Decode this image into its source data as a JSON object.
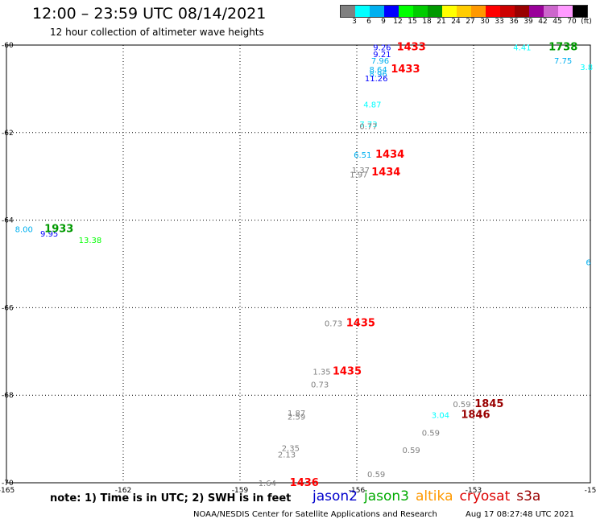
{
  "title": "12:00 – 23:59 UTC 08/14/2021",
  "subtitle": "12 hour collection of altimeter wave heights",
  "colorbar": {
    "colors": [
      "#808080",
      "#00ffff",
      "#00b0f0",
      "#0000ff",
      "#00ff00",
      "#00cc00",
      "#009900",
      "#ffff00",
      "#ffcc00",
      "#ff9900",
      "#ff0000",
      "#cc0000",
      "#990000",
      "#990099",
      "#cc66cc",
      "#ff99ff",
      "#000000"
    ],
    "labels": [
      "3",
      "6",
      "9",
      "12",
      "15",
      "18",
      "21",
      "24",
      "27",
      "30",
      "33",
      "36",
      "39",
      "42",
      "45",
      "70",
      "(ft)"
    ]
  },
  "axes": {
    "x_ticks": [
      "-165",
      "-162",
      "-159",
      "-156",
      "-153",
      "-15"
    ],
    "y_ticks": [
      "-60",
      "-62",
      "-64",
      "-66",
      "-68",
      "-70"
    ],
    "x_range": [
      -165,
      -150
    ],
    "y_range": [
      -70,
      -60
    ]
  },
  "note": "note: 1) Time is in UTC; 2) SWH is in feet",
  "legend": [
    {
      "label": "jason2",
      "color": "#0000cc"
    },
    {
      "label": "jason3",
      "color": "#00aa00"
    },
    {
      "label": "altika",
      "color": "#ff9900"
    },
    {
      "label": "cryosat",
      "color": "#dd0000"
    },
    {
      "label": "s3a",
      "color": "#990000"
    }
  ],
  "footer_left": "NOAA/NESDIS Center for Satellite Applications and Research",
  "footer_right": "Aug 17 08:27:48 UTC 2021",
  "labels": [
    {
      "text": "9.26",
      "lon": -155.35,
      "lat": -60.05,
      "color": "#0000ff",
      "kind": "value"
    },
    {
      "text": "9.21",
      "lon": -155.35,
      "lat": -60.2,
      "color": "#0000ff",
      "kind": "value"
    },
    {
      "text": "7.96",
      "lon": -155.4,
      "lat": -60.35,
      "color": "#00b0f0",
      "kind": "value"
    },
    {
      "text": "8.64",
      "lon": -155.45,
      "lat": -60.55,
      "color": "#00b0f0",
      "kind": "value"
    },
    {
      "text": "8.96",
      "lon": -155.45,
      "lat": -60.65,
      "color": "#00b0f0",
      "kind": "value"
    },
    {
      "text": "11.26",
      "lon": -155.5,
      "lat": -60.75,
      "color": "#0000ff",
      "kind": "value"
    },
    {
      "text": "1433",
      "lon": -154.6,
      "lat": -60.05,
      "color": "#ff0000",
      "kind": "time"
    },
    {
      "text": "1433",
      "lon": -154.75,
      "lat": -60.55,
      "color": "#ff0000",
      "kind": "time"
    },
    {
      "text": "4.87",
      "lon": -155.6,
      "lat": -61.35,
      "color": "#00ffff",
      "kind": "value"
    },
    {
      "text": "7.73",
      "lon": -155.7,
      "lat": -61.8,
      "color": "#00ffff",
      "kind": "value"
    },
    {
      "text": "0.77",
      "lon": -155.7,
      "lat": -61.85,
      "color": "#808080",
      "kind": "value"
    },
    {
      "text": "6.51",
      "lon": -155.85,
      "lat": -62.5,
      "color": "#00b0f0",
      "kind": "value"
    },
    {
      "text": "1434",
      "lon": -155.15,
      "lat": -62.5,
      "color": "#ff0000",
      "kind": "time"
    },
    {
      "text": "1.37",
      "lon": -155.9,
      "lat": -62.85,
      "color": "#808080",
      "kind": "value"
    },
    {
      "text": "1.97",
      "lon": -155.95,
      "lat": -62.95,
      "color": "#808080",
      "kind": "value"
    },
    {
      "text": "1434",
      "lon": -155.25,
      "lat": -62.9,
      "color": "#ff0000",
      "kind": "time"
    },
    {
      "text": "8.00",
      "lon": -164.55,
      "lat": -64.2,
      "color": "#00b0f0",
      "kind": "value"
    },
    {
      "text": "9.95",
      "lon": -163.9,
      "lat": -64.3,
      "color": "#0000ff",
      "kind": "value"
    },
    {
      "text": "1933",
      "lon": -163.65,
      "lat": -64.2,
      "color": "#009900",
      "kind": "time"
    },
    {
      "text": "13.38",
      "lon": -162.85,
      "lat": -64.45,
      "color": "#00ff00",
      "kind": "value"
    },
    {
      "text": "4.41",
      "lon": -151.75,
      "lat": -60.05,
      "color": "#00ffff",
      "kind": "value"
    },
    {
      "text": "1738",
      "lon": -150.7,
      "lat": -60.05,
      "color": "#009900",
      "kind": "time"
    },
    {
      "text": "7.75",
      "lon": -150.7,
      "lat": -60.35,
      "color": "#00b0f0",
      "kind": "value"
    },
    {
      "text": "3.8",
      "lon": -150.1,
      "lat": -60.5,
      "color": "#00ffff",
      "kind": "value"
    },
    {
      "text": "6",
      "lon": -150.05,
      "lat": -64.95,
      "color": "#00b0f0",
      "kind": "value"
    },
    {
      "text": "0.73",
      "lon": -156.6,
      "lat": -66.35,
      "color": "#808080",
      "kind": "value"
    },
    {
      "text": "1435",
      "lon": -155.9,
      "lat": -66.35,
      "color": "#ff0000",
      "kind": "time"
    },
    {
      "text": "1.35",
      "lon": -156.9,
      "lat": -67.45,
      "color": "#808080",
      "kind": "value"
    },
    {
      "text": "1435",
      "lon": -156.25,
      "lat": -67.45,
      "color": "#ff0000",
      "kind": "time"
    },
    {
      "text": "0.73",
      "lon": -156.95,
      "lat": -67.75,
      "color": "#808080",
      "kind": "value"
    },
    {
      "text": "0.59",
      "lon": -153.3,
      "lat": -68.2,
      "color": "#808080",
      "kind": "value"
    },
    {
      "text": "1845",
      "lon": -152.6,
      "lat": -68.2,
      "color": "#990000",
      "kind": "time"
    },
    {
      "text": "3.04",
      "lon": -153.85,
      "lat": -68.45,
      "color": "#00ffff",
      "kind": "value"
    },
    {
      "text": "1846",
      "lon": -152.95,
      "lat": -68.45,
      "color": "#990000",
      "kind": "time"
    },
    {
      "text": "1.87",
      "lon": -157.55,
      "lat": -68.4,
      "color": "#808080",
      "kind": "value"
    },
    {
      "text": "2.59",
      "lon": -157.55,
      "lat": -68.48,
      "color": "#808080",
      "kind": "value"
    },
    {
      "text": "0.59",
      "lon": -154.1,
      "lat": -68.85,
      "color": "#808080",
      "kind": "value"
    },
    {
      "text": "0.59",
      "lon": -154.6,
      "lat": -69.25,
      "color": "#808080",
      "kind": "value"
    },
    {
      "text": "2.35",
      "lon": -157.7,
      "lat": -69.2,
      "color": "#808080",
      "kind": "value"
    },
    {
      "text": "2.13",
      "lon": -157.8,
      "lat": -69.35,
      "color": "#808080",
      "kind": "value"
    },
    {
      "text": "0.59",
      "lon": -155.5,
      "lat": -69.8,
      "color": "#808080",
      "kind": "value"
    },
    {
      "text": "1.64",
      "lon": -158.3,
      "lat": -70.0,
      "color": "#808080",
      "kind": "value"
    },
    {
      "text": "1436",
      "lon": -157.35,
      "lat": -70.0,
      "color": "#ff0000",
      "kind": "time"
    }
  ]
}
